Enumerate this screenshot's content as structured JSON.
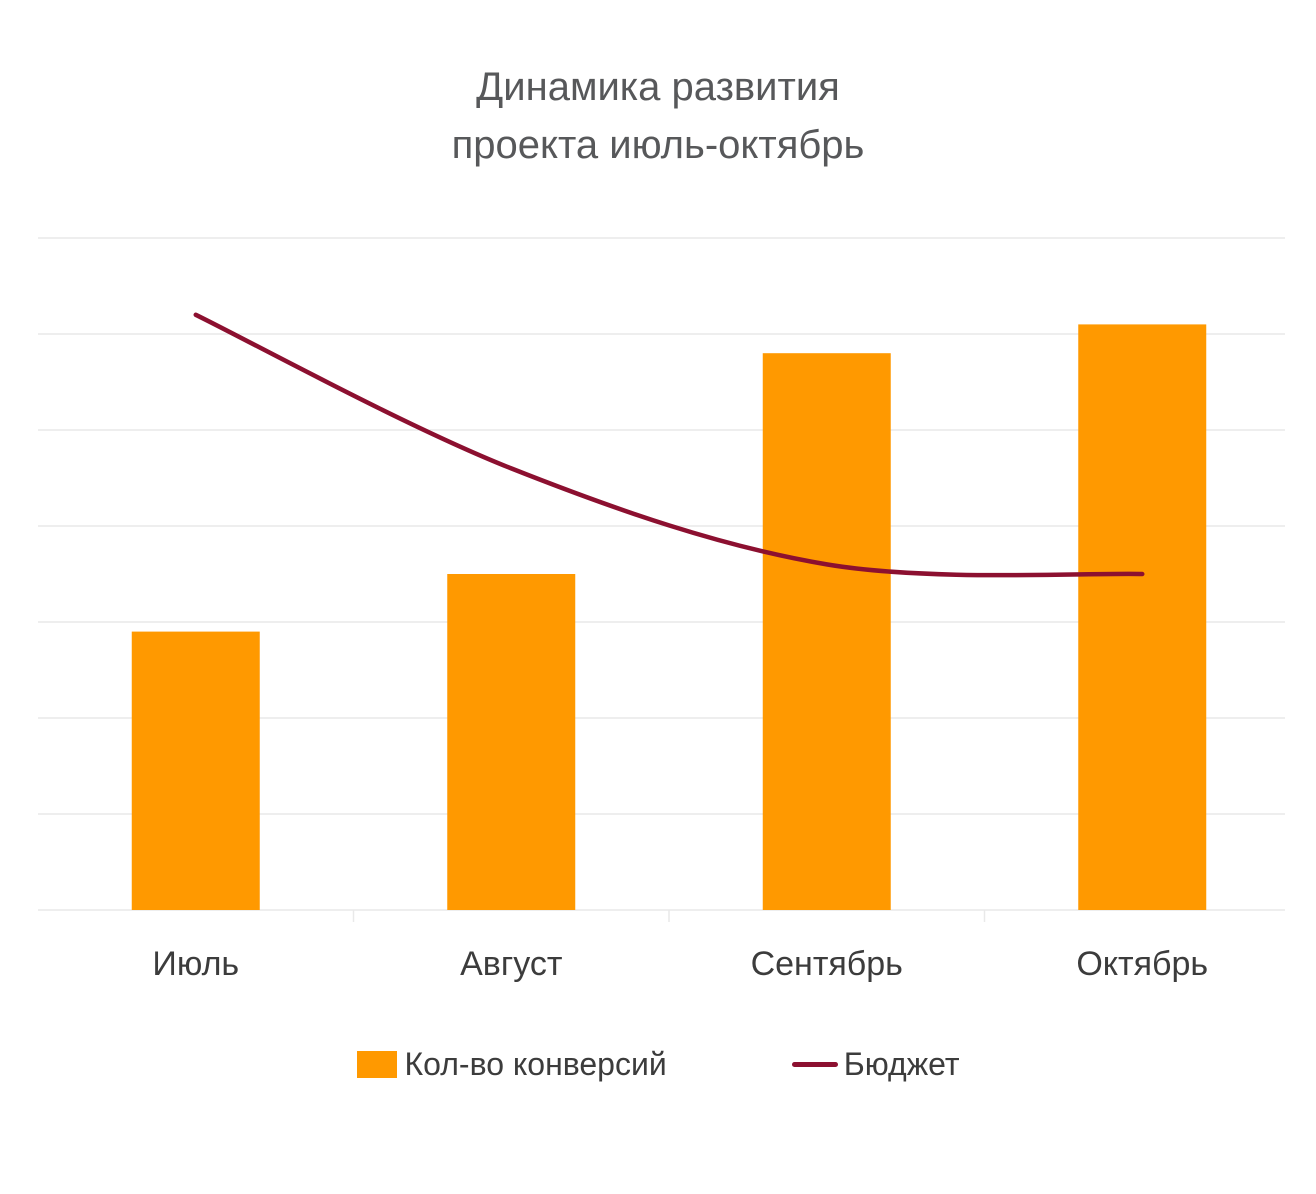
{
  "title": {
    "line1": "Динамика развития",
    "line2": "проекта июль-октябрь"
  },
  "colors": {
    "bar": "#FF9900",
    "line": "#8C1030",
    "grid": "#E9E9E9",
    "axis_text": "#3C3C3C",
    "title_text": "#57585A"
  },
  "chart_data": {
    "type": "bar",
    "subtype": "combo-bar-line",
    "title": "Динамика развития проекта июль-октябрь",
    "categories": [
      "Июль",
      "Август",
      "Сентябрь",
      "Октябрь"
    ],
    "series": [
      {
        "name": "Кол-во конверсий",
        "type": "bar",
        "color": "#FF9900",
        "values": [
          29,
          35,
          58,
          61
        ]
      },
      {
        "name": "Бюджет",
        "type": "line",
        "color": "#8C1030",
        "values": [
          62,
          46,
          36,
          35
        ]
      }
    ],
    "xlabel": "",
    "ylabel": "",
    "ylim": [
      0,
      70
    ],
    "grid_step": 10,
    "grid": true,
    "y_axis_labels_visible": false,
    "legend_position": "bottom"
  }
}
